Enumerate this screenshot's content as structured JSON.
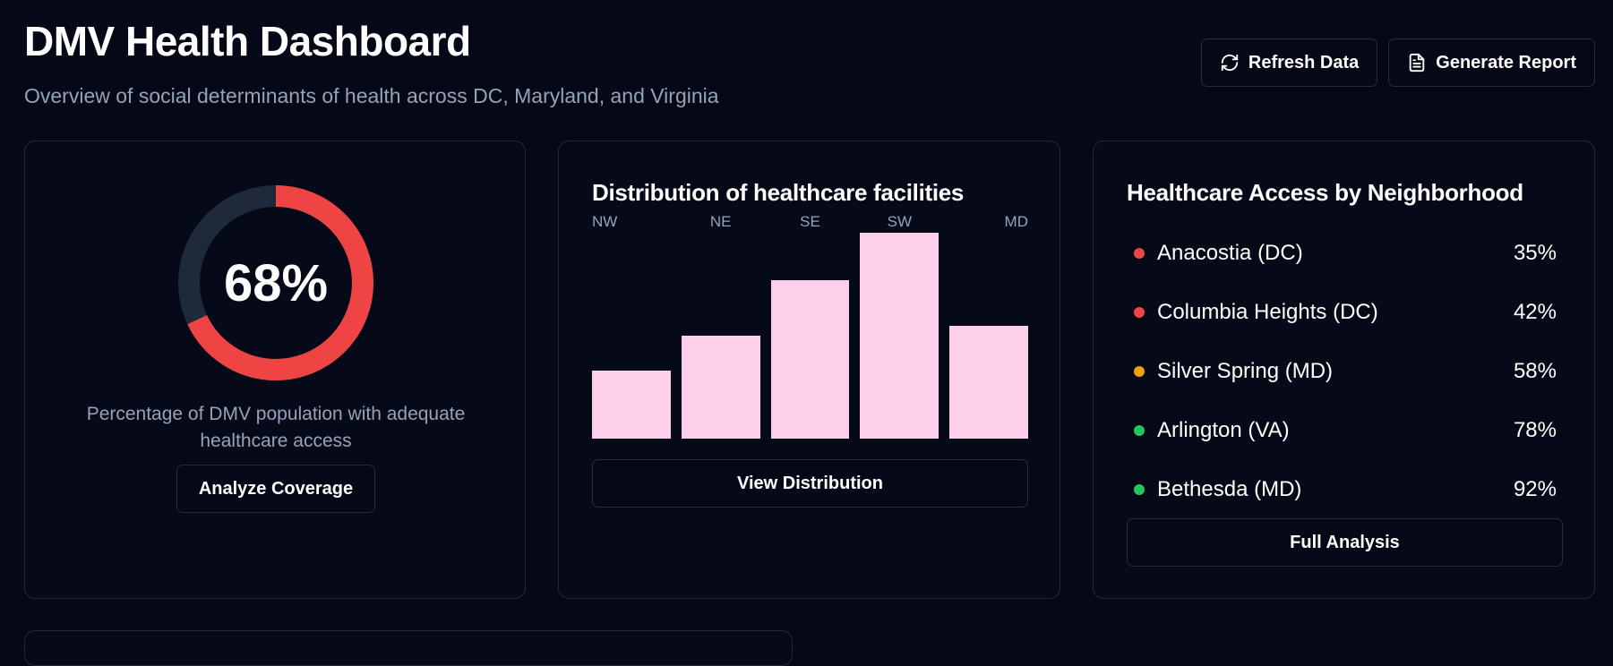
{
  "header": {
    "title": "DMV Health Dashboard",
    "subtitle": "Overview of social determinants of health across DC, Maryland, and Virginia"
  },
  "actions": {
    "refresh_label": "Refresh Data",
    "refresh_icon": "refresh-icon",
    "report_label": "Generate Report",
    "report_icon": "document-icon"
  },
  "coverage": {
    "value": 68,
    "value_text": "68%",
    "caption": "Percentage of DMV population with adequate healthcare access",
    "button_label": "Analyze Coverage",
    "ring_color": "#ef4444",
    "track_color": "#1e293b"
  },
  "distribution": {
    "title": "Distribution of healthcare facilities",
    "button_label": "View Distribution",
    "bar_color": "#fbd0e8"
  },
  "chart_data": {
    "type": "bar",
    "categories": [
      "NW",
      "NE",
      "SE",
      "SW",
      "MD"
    ],
    "values": [
      33,
      50,
      77,
      100,
      55
    ],
    "ylim": [
      0,
      100
    ],
    "grid": false,
    "title": "Distribution of healthcare facilities"
  },
  "neighborhoods": {
    "title": "Healthcare Access by Neighborhood",
    "button_label": "Full Analysis",
    "items": [
      {
        "name": "Anacostia (DC)",
        "pct": "35%",
        "color": "#ef4444"
      },
      {
        "name": "Columbia Heights (DC)",
        "pct": "42%",
        "color": "#ef4444"
      },
      {
        "name": "Silver Spring (MD)",
        "pct": "58%",
        "color": "#f59e0b"
      },
      {
        "name": "Arlington (VA)",
        "pct": "78%",
        "color": "#22c55e"
      },
      {
        "name": "Bethesda (MD)",
        "pct": "92%",
        "color": "#22c55e"
      }
    ]
  }
}
